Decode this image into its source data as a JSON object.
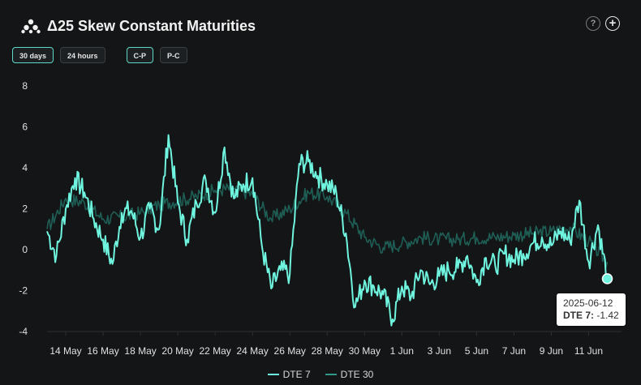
{
  "title": "Δ25 Skew Constant Maturities",
  "icons": {
    "logo": "brand-logo-icon",
    "help": "help-icon",
    "add": "add-icon"
  },
  "help_glyph": "?",
  "add_glyph": "+",
  "buttons": {
    "range": [
      {
        "label": "30 days",
        "active": true
      },
      {
        "label": "24 hours",
        "active": false
      }
    ],
    "mode": [
      {
        "label": "C-P",
        "active": true
      },
      {
        "label": "P-C",
        "active": false
      }
    ]
  },
  "colors": {
    "dte7": "#6ff5df",
    "dte30": "#1f5e55",
    "background": "#131516"
  },
  "tooltip": {
    "date": "2025-06-12",
    "series": "DTE 7:",
    "value": "-1.42"
  },
  "chart_data": {
    "type": "line",
    "title": "Δ25 Skew Constant Maturities",
    "xlabel": "",
    "ylabel": "",
    "ylim": [
      -4,
      8
    ],
    "xlim": [
      "2025-05-13",
      "2025-06-12"
    ],
    "yticks": [
      -4,
      -2,
      0,
      2,
      4,
      6,
      8
    ],
    "xticks": [
      "14 May",
      "16 May",
      "18 May",
      "20 May",
      "22 May",
      "24 May",
      "26 May",
      "28 May",
      "30 May",
      "1 Jun",
      "3 Jun",
      "5 Jun",
      "7 Jun",
      "9 Jun",
      "11 Jun"
    ],
    "grid": false,
    "legend": "bottom-center",
    "series": [
      {
        "name": "DTE 7",
        "points": [
          [
            "2025-05-13",
            0.9
          ],
          [
            "2025-05-13T12",
            -0.3
          ],
          [
            "2025-05-14",
            2.0
          ],
          [
            "2025-05-14T12",
            3.5
          ],
          [
            "2025-05-15",
            2.8
          ],
          [
            "2025-05-15T12",
            1.5
          ],
          [
            "2025-05-16",
            0.5
          ],
          [
            "2025-05-16T12",
            -0.7
          ],
          [
            "2025-05-17",
            1.8
          ],
          [
            "2025-05-17T12",
            1.9
          ],
          [
            "2025-05-18",
            0.6
          ],
          [
            "2025-05-18T12",
            2.0
          ],
          [
            "2025-05-19",
            1.0
          ],
          [
            "2025-05-19T12",
            5.6
          ],
          [
            "2025-05-20",
            2.3
          ],
          [
            "2025-05-20T12",
            0.5
          ],
          [
            "2025-05-21",
            2.3
          ],
          [
            "2025-05-21T12",
            3.4
          ],
          [
            "2025-05-22",
            1.8
          ],
          [
            "2025-05-22T12",
            5.0
          ],
          [
            "2025-05-23",
            2.5
          ],
          [
            "2025-05-23T12",
            3.2
          ],
          [
            "2025-05-24",
            3.5
          ],
          [
            "2025-05-24T12",
            0.2
          ],
          [
            "2025-05-25",
            -1.9
          ],
          [
            "2025-05-25T12",
            -1.0
          ],
          [
            "2025-05-26",
            -1.2
          ],
          [
            "2025-05-26T12",
            4.2
          ],
          [
            "2025-05-27",
            4.3
          ],
          [
            "2025-05-27T12",
            3.6
          ],
          [
            "2025-05-28",
            3.2
          ],
          [
            "2025-05-28T12",
            2.7
          ],
          [
            "2025-05-29",
            0.8
          ],
          [
            "2025-05-29T12",
            -2.8
          ],
          [
            "2025-05-30",
            -1.5
          ],
          [
            "2025-05-30T12",
            -1.8
          ],
          [
            "2025-05-31",
            -2.2
          ],
          [
            "2025-05-31T12",
            -3.4
          ],
          [
            "2025-06-01",
            -1.8
          ],
          [
            "2025-06-01T12",
            -2.3
          ],
          [
            "2025-06-02",
            -1.0
          ],
          [
            "2025-06-02T12",
            -1.7
          ],
          [
            "2025-06-03",
            -1.3
          ],
          [
            "2025-06-03T12",
            -1.0
          ],
          [
            "2025-06-04",
            -0.9
          ],
          [
            "2025-06-04T12",
            -0.3
          ],
          [
            "2025-06-05",
            -1.6
          ],
          [
            "2025-06-05T12",
            -0.4
          ],
          [
            "2025-06-06",
            -0.8
          ],
          [
            "2025-06-06T12",
            -0.2
          ],
          [
            "2025-06-07",
            -0.5
          ],
          [
            "2025-06-07T12",
            -0.2
          ],
          [
            "2025-06-08",
            0.3
          ],
          [
            "2025-06-08T12",
            0.6
          ],
          [
            "2025-06-09",
            0.2
          ],
          [
            "2025-06-09T12",
            0.9
          ],
          [
            "2025-06-10",
            0.4
          ],
          [
            "2025-06-10T12",
            2.4
          ],
          [
            "2025-06-11",
            -0.6
          ],
          [
            "2025-06-11T12",
            1.2
          ],
          [
            "2025-06-12",
            -1.42
          ]
        ]
      },
      {
        "name": "DTE 30",
        "points": [
          [
            "2025-05-13",
            1.0
          ],
          [
            "2025-05-14",
            2.5
          ],
          [
            "2025-05-15",
            2.3
          ],
          [
            "2025-05-16",
            1.5
          ],
          [
            "2025-05-17",
            1.6
          ],
          [
            "2025-05-18",
            1.8
          ],
          [
            "2025-05-19",
            2.2
          ],
          [
            "2025-05-20",
            2.4
          ],
          [
            "2025-05-21",
            2.6
          ],
          [
            "2025-05-22",
            2.9
          ],
          [
            "2025-05-23",
            3.0
          ],
          [
            "2025-05-24",
            2.7
          ],
          [
            "2025-05-25",
            1.5
          ],
          [
            "2025-05-26",
            2.0
          ],
          [
            "2025-05-27",
            2.8
          ],
          [
            "2025-05-28",
            2.6
          ],
          [
            "2025-05-29",
            1.8
          ],
          [
            "2025-05-30",
            0.6
          ],
          [
            "2025-05-31",
            0.1
          ],
          [
            "2025-06-01",
            0.3
          ],
          [
            "2025-06-02",
            0.6
          ],
          [
            "2025-06-03",
            0.5
          ],
          [
            "2025-06-04",
            0.5
          ],
          [
            "2025-06-05",
            0.6
          ],
          [
            "2025-06-06",
            0.6
          ],
          [
            "2025-06-07",
            0.7
          ],
          [
            "2025-06-08",
            0.8
          ],
          [
            "2025-06-09",
            0.9
          ],
          [
            "2025-06-10",
            1.1
          ],
          [
            "2025-06-11",
            0.4
          ],
          [
            "2025-06-12",
            -0.6
          ]
        ]
      }
    ]
  }
}
